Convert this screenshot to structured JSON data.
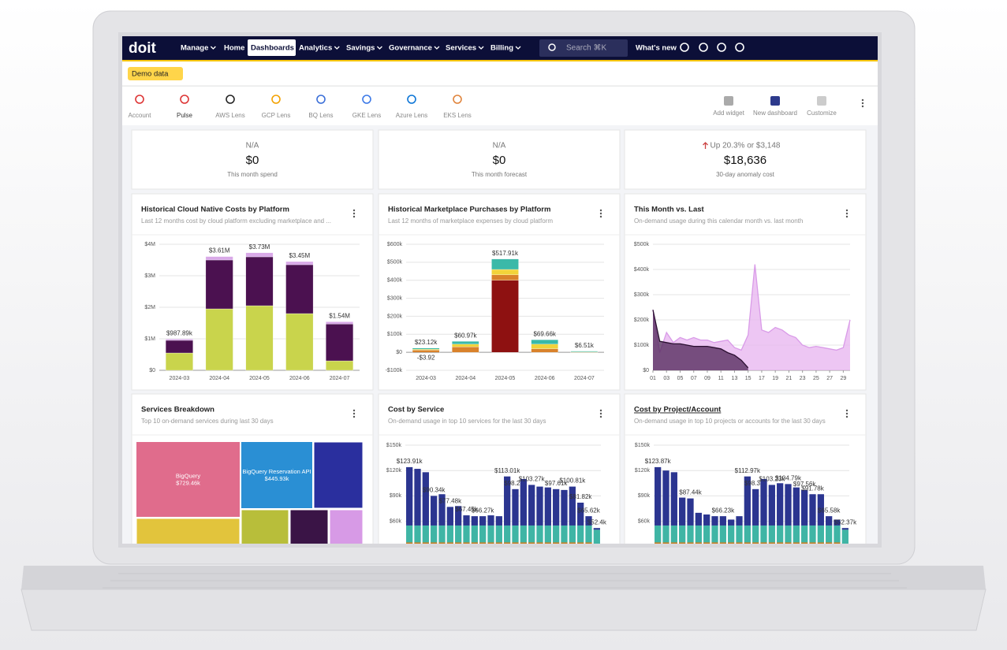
{
  "nav": {
    "logo": "doit",
    "items": [
      {
        "label": "Manage",
        "menu": true
      },
      {
        "label": "Home"
      },
      {
        "label": "Dashboards",
        "active": true
      },
      {
        "label": "Analytics",
        "menu": true
      },
      {
        "label": "Savings",
        "menu": true
      },
      {
        "label": "Governance",
        "menu": true
      },
      {
        "label": "Services",
        "menu": true
      },
      {
        "label": "Billing",
        "menu": true
      }
    ],
    "search": "Search ⌘K",
    "whats_new": "What's new"
  },
  "banner": {
    "badge": "Demo data"
  },
  "toolbar": {
    "lenses": [
      "Account",
      "Pulse",
      "AWS Lens",
      "GCP Lens",
      "BQ Lens",
      "GKE Lens",
      "Azure Lens",
      "EKS Lens"
    ],
    "actions": [
      "Add widget",
      "New dashboard",
      "Customize"
    ]
  },
  "summary_cards": [
    {
      "top": "N/A",
      "value": "$0",
      "label": "This month spend"
    },
    {
      "top": "N/A",
      "value": "$0",
      "label": "This month forecast"
    },
    {
      "top": "Up 20.3% or $3,148",
      "value": "$18,636",
      "label": "30-day anomaly cost"
    }
  ],
  "widgets": [
    {
      "title": "Historical Cloud Native Costs by Platform",
      "subtitle": "Last 12 months cost by cloud platform excluding marketplace and ...",
      "chart_data": {
        "type": "bar",
        "categories": [
          "2024-03",
          "2024-04",
          "2024-05",
          "2024-06",
          "2024-07"
        ],
        "series": [
          {
            "color": "#c9d44c",
            "values": [
              550000,
              1950000,
              2050000,
              1800000,
              300000
            ]
          },
          {
            "color": "#4b1150",
            "values": [
              400000,
              1550000,
              1550000,
              1550000,
              1170000
            ]
          },
          {
            "color": "#d9a9e8",
            "values": [
              40000,
              110000,
              130000,
              100000,
              70000
            ]
          }
        ],
        "total_labels": [
          "$987.89k",
          "$3.61M",
          "$3.73M",
          "$3.45M",
          "$1.54M"
        ],
        "ylim": [
          0,
          4000000
        ],
        "yticks": [
          {
            "value": 0,
            "label": "$0"
          },
          {
            "value": 1000000,
            "label": "$1M"
          },
          {
            "value": 2000000,
            "label": "$2M"
          },
          {
            "value": 3000000,
            "label": "$3M"
          },
          {
            "value": 4000000,
            "label": "$4M"
          }
        ]
      }
    },
    {
      "title": "Historical Marketplace Purchases by Platform",
      "subtitle": "Last 12 months of marketplace expenses by cloud platform",
      "chart_data": {
        "type": "bar",
        "categories": [
          "2024-03",
          "2024-04",
          "2024-05",
          "2024-06",
          "2024-07"
        ],
        "series": [
          {
            "color": "#888888",
            "values": [
              -3.92,
              0,
              0,
              0,
              0
            ]
          },
          {
            "color": "#8e1111",
            "values": [
              0,
              0,
              400000,
              0,
              0
            ]
          },
          {
            "color": "#d9822b",
            "values": [
              12000,
              30000,
              30000,
              20000,
              3000
            ]
          },
          {
            "color": "#f2d33a",
            "values": [
              5000,
              15000,
              30000,
              25000,
              2000
            ]
          },
          {
            "color": "#3bb9a8",
            "values": [
              6120,
              15970,
              57910,
              24660,
              1510
            ]
          }
        ],
        "total_labels": [
          "$23.12k",
          "$60.97k",
          "$517.91k",
          "$69.66k",
          "$6.51k"
        ],
        "negative_labels": [
          "-$3.92",
          null,
          null,
          null,
          null
        ],
        "ylim": [
          -100000,
          600000
        ],
        "yticks": [
          {
            "value": -100000,
            "label": "-$100k"
          },
          {
            "value": 0,
            "label": "$0"
          },
          {
            "value": 100000,
            "label": "$100k"
          },
          {
            "value": 200000,
            "label": "$200k"
          },
          {
            "value": 300000,
            "label": "$300k"
          },
          {
            "value": 400000,
            "label": "$400k"
          },
          {
            "value": 500000,
            "label": "$500k"
          },
          {
            "value": 600000,
            "label": "$600k"
          }
        ]
      }
    },
    {
      "title": "This Month vs. Last",
      "subtitle": "On-demand usage during this calendar month vs. last month",
      "chart_data": {
        "type": "line",
        "x": [
          1,
          2,
          3,
          4,
          5,
          6,
          7,
          8,
          9,
          10,
          11,
          12,
          13,
          14,
          15,
          16,
          17,
          18,
          19,
          20,
          21,
          22,
          23,
          24,
          25,
          26,
          27,
          28,
          29,
          30
        ],
        "series": [
          {
            "color": "#e8b8f0",
            "values": [
              240000,
              70000,
              150000,
              110000,
              130000,
              120000,
              130000,
              120000,
              120000,
              110000,
              115000,
              120000,
              90000,
              80000,
              140000,
              420000,
              160000,
              150000,
              170000,
              160000,
              140000,
              130000,
              100000,
              90000,
              95000,
              90000,
              85000,
              80000,
              90000,
              200000
            ]
          },
          {
            "color": "#4e2457",
            "values": [
              240000,
              115000,
              110000,
              105000,
              105000,
              100000,
              95000,
              95000,
              95000,
              90000,
              85000,
              70000,
              60000,
              40000,
              10000,
              null,
              null,
              null,
              null,
              null,
              null,
              null,
              null,
              null,
              null,
              null,
              null,
              null,
              null,
              null
            ]
          }
        ],
        "xlim": [
          1,
          30
        ],
        "xticks": [
          {
            "value": 1,
            "label": "01"
          },
          {
            "value": 3,
            "label": "03"
          },
          {
            "value": 5,
            "label": "05"
          },
          {
            "value": 7,
            "label": "07"
          },
          {
            "value": 9,
            "label": "09"
          },
          11,
          13,
          15,
          17,
          19,
          21,
          23,
          25,
          27,
          29
        ],
        "ylim": [
          0,
          500000
        ],
        "yticks": [
          {
            "value": 0,
            "label": "$0"
          },
          {
            "value": 100000,
            "label": "$100k"
          },
          {
            "value": 200000,
            "label": "$200k"
          },
          {
            "value": 300000,
            "label": "$300k"
          },
          {
            "value": 400000,
            "label": "$400k"
          },
          {
            "value": 500000,
            "label": "$500k"
          }
        ]
      }
    },
    {
      "title": "Services Breakdown",
      "subtitle": "Top 10 on-demand services during last 30 days",
      "chart_data": {
        "type": "treemap",
        "cells": [
          {
            "name": "BigQuery",
            "value": 729460,
            "value_label": "$729.46k",
            "color": "#e06c8c"
          },
          {
            "name": "BigQuery Reservation API",
            "value": 445930,
            "value_label": "$445.93k",
            "color": "#2a8fd4"
          }
        ]
      }
    },
    {
      "title": "Cost by Service",
      "subtitle": "On-demand usage in top 10 services for the last 30 days",
      "chart_data": {
        "type": "bar",
        "series": [
          {
            "color": "#c87a1a",
            "values": [
              35000,
              35000,
              35000,
              35000,
              35000,
              35000,
              35000,
              35000,
              35000,
              35000,
              35000,
              35000,
              35000,
              35000,
              35000,
              35000,
              35000,
              35000,
              35000,
              35000,
              35000,
              35000,
              35000,
              30000
            ]
          },
          {
            "color": "#3fb5a5",
            "values": [
              20000,
              20000,
              20000,
              20000,
              20000,
              20000,
              20000,
              20000,
              20000,
              20000,
              20000,
              20000,
              20000,
              20000,
              20000,
              20000,
              20000,
              20000,
              20000,
              20000,
              20000,
              20000,
              20000,
              20000
            ]
          },
          {
            "color": "#2b3590",
            "values": [
              69000,
              67000,
              63000,
              35000,
              37000,
              22000,
              23000,
              12000,
              11000,
              11000,
              12000,
              11000,
              58000,
              43000,
              55000,
              48000,
              46000,
              45000,
              43000,
              42000,
              46000,
              27000,
              11000,
              2000
            ]
          }
        ],
        "total_labels": [
          "$123.91k",
          null,
          null,
          "$90.34k",
          null,
          "$77.48k",
          null,
          "$67.45k",
          null,
          "$66.27k",
          null,
          null,
          "$113.01k",
          "$98.27k",
          null,
          "$103.27k",
          null,
          null,
          "$97.61k",
          null,
          "$100.81k",
          "$81.82k",
          "$65.62k",
          "$52.4k"
        ],
        "ylim": [
          0,
          150000
        ],
        "yticks": [
          {
            "value": 60000,
            "label": "$60k"
          },
          {
            "value": 90000,
            "label": "$90k"
          },
          {
            "value": 120000,
            "label": "$120k"
          },
          {
            "value": 150000,
            "label": "$150k"
          }
        ]
      }
    },
    {
      "title": "Cost by Project/Account",
      "subtitle": "On-demand usage in top 10 projects or accounts for the last 30 days",
      "chart_data": {
        "type": "bar",
        "series": [
          {
            "color": "#c87a1a",
            "values": [
              35000,
              35000,
              35000,
              35000,
              35000,
              35000,
              35000,
              35000,
              35000,
              35000,
              35000,
              35000,
              35000,
              35000,
              35000,
              35000,
              35000,
              35000,
              35000,
              35000,
              35000,
              35000,
              35000,
              30000
            ]
          },
          {
            "color": "#3fb5a5",
            "values": [
              20000,
              20000,
              20000,
              20000,
              20000,
              20000,
              20000,
              20000,
              20000,
              20000,
              20000,
              20000,
              20000,
              20000,
              20000,
              20000,
              20000,
              20000,
              20000,
              20000,
              20000,
              20000,
              20000,
              20000
            ]
          },
          {
            "color": "#2b3590",
            "values": [
              69000,
              65000,
              63000,
              33000,
              32000,
              15000,
              13000,
              11000,
              11000,
              7000,
              11000,
              58000,
              43000,
              55000,
              48000,
              50000,
              49000,
              45000,
              42000,
              37000,
              37000,
              11000,
              7000,
              2000
            ]
          }
        ],
        "total_labels": [
          "$123.87k",
          null,
          null,
          null,
          "$87.44k",
          null,
          null,
          null,
          "$66.23k",
          null,
          null,
          "$112.97k",
          "$98.35k",
          null,
          "$103.23k",
          null,
          "$104.79k",
          null,
          "$97.56k",
          "$91.78k",
          null,
          "$65.58k",
          null,
          "$52.37k"
        ],
        "ylim": [
          0,
          150000
        ],
        "yticks": [
          {
            "value": 60000,
            "label": "$60k"
          },
          {
            "value": 90000,
            "label": "$90k"
          },
          {
            "value": 120000,
            "label": "$120k"
          },
          {
            "value": 150000,
            "label": "$150k"
          }
        ]
      }
    }
  ]
}
